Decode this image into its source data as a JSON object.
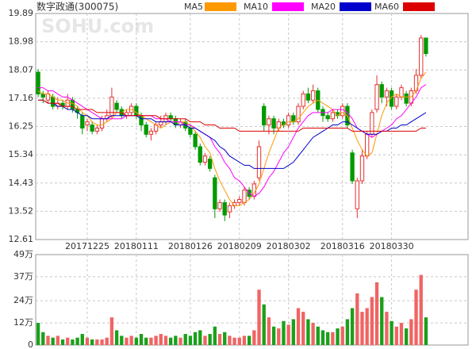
{
  "chart_data": [
    {
      "type": "candlestick",
      "title": "数字政通(300075)",
      "watermark": "SOHU.com",
      "categories": [
        null,
        null,
        null,
        null,
        null,
        null,
        null,
        null,
        null,
        null,
        "20171225",
        null,
        null,
        null,
        null,
        null,
        null,
        null,
        null,
        null,
        "20180111",
        null,
        null,
        null,
        null,
        null,
        null,
        null,
        null,
        null,
        null,
        "20180126",
        null,
        null,
        null,
        null,
        null,
        null,
        null,
        null,
        null,
        "20180209",
        null,
        null,
        null,
        null,
        null,
        null,
        null,
        null,
        null,
        "20180302",
        null,
        null,
        null,
        null,
        null,
        null,
        null,
        null,
        null,
        null,
        "20180316",
        null,
        null,
        null,
        null,
        null,
        null,
        null,
        null,
        null,
        "20180330",
        null,
        null,
        null,
        null,
        null,
        null,
        null
      ],
      "open": [
        18.0,
        17.3,
        17.1,
        17.2,
        16.9,
        17.0,
        16.9,
        17.1,
        16.8,
        16.6,
        16.3,
        16.3,
        16.1,
        16.2,
        16.5,
        16.6,
        17.0,
        16.8,
        16.6,
        16.7,
        16.9,
        16.6,
        16.3,
        16.0,
        16.1,
        16.3,
        16.4,
        16.6,
        16.5,
        16.3,
        16.4,
        16.2,
        16.0,
        15.6,
        15.1,
        15.2,
        14.6,
        13.6,
        13.8,
        13.5,
        13.7,
        13.8,
        13.8,
        14.2,
        14.0,
        14.6,
        16.9,
        16.3,
        16.5,
        16.2,
        16.4,
        16.3,
        16.6,
        16.4,
        16.9,
        17.3,
        17.1,
        17.4,
        16.8,
        16.6,
        16.5,
        16.7,
        16.6,
        16.9,
        15.4,
        13.6,
        14.5,
        15.3,
        16.0,
        16.8,
        17.6,
        17.2,
        17.4,
        16.9,
        17.2,
        17.3,
        17.0,
        17.4,
        17.9,
        19.1
      ],
      "high": [
        18.1,
        17.4,
        17.4,
        17.3,
        17.2,
        17.1,
        17.3,
        17.2,
        16.9,
        16.7,
        16.5,
        16.4,
        16.3,
        16.6,
        16.8,
        17.5,
        17.1,
        16.9,
        16.8,
        17.0,
        17.0,
        16.7,
        16.4,
        16.2,
        16.4,
        16.6,
        16.7,
        16.7,
        16.6,
        16.5,
        16.5,
        16.3,
        16.1,
        15.7,
        15.4,
        15.3,
        14.7,
        13.9,
        13.9,
        13.8,
        13.9,
        14.0,
        14.3,
        14.3,
        14.5,
        15.8,
        17.0,
        16.6,
        16.6,
        16.5,
        16.5,
        16.7,
        16.7,
        17.0,
        17.4,
        17.5,
        17.6,
        17.5,
        16.9,
        16.7,
        16.8,
        16.8,
        17.0,
        17.0,
        15.5,
        14.6,
        15.5,
        16.1,
        16.8,
        17.9,
        17.7,
        17.5,
        17.5,
        17.3,
        17.6,
        17.4,
        17.5,
        18.1,
        19.2,
        19.1
      ],
      "low": [
        17.2,
        17.0,
        17.0,
        16.8,
        16.8,
        16.8,
        16.8,
        16.7,
        16.5,
        16.0,
        16.1,
        16.0,
        16.0,
        16.1,
        16.4,
        16.5,
        16.7,
        16.5,
        16.5,
        16.6,
        16.5,
        16.1,
        15.9,
        15.8,
        16.0,
        16.2,
        16.3,
        16.4,
        16.2,
        16.2,
        16.1,
        15.9,
        15.5,
        15.0,
        15.0,
        14.8,
        13.3,
        13.5,
        13.2,
        13.3,
        13.6,
        13.7,
        13.7,
        13.9,
        13.9,
        14.5,
        16.1,
        16.0,
        16.0,
        16.1,
        16.2,
        16.2,
        16.3,
        16.3,
        16.8,
        17.0,
        17.0,
        16.7,
        16.4,
        16.4,
        16.4,
        16.5,
        16.5,
        16.2,
        14.4,
        13.3,
        14.4,
        15.2,
        15.9,
        16.7,
        17.0,
        16.9,
        16.8,
        16.8,
        17.1,
        16.9,
        16.9,
        17.3,
        17.8,
        18.5
      ],
      "close": [
        17.3,
        17.2,
        17.3,
        16.9,
        17.0,
        16.9,
        17.1,
        16.8,
        16.7,
        16.2,
        16.4,
        16.1,
        16.2,
        16.5,
        16.6,
        17.2,
        16.8,
        16.6,
        16.7,
        16.9,
        16.6,
        16.3,
        16.0,
        16.1,
        16.3,
        16.4,
        16.6,
        16.5,
        16.3,
        16.4,
        16.2,
        16.0,
        15.6,
        15.1,
        15.3,
        14.9,
        13.6,
        13.8,
        13.4,
        13.7,
        13.8,
        13.9,
        14.2,
        14.0,
        14.4,
        15.6,
        16.3,
        16.5,
        16.2,
        16.4,
        16.3,
        16.6,
        16.4,
        16.9,
        17.3,
        17.1,
        17.4,
        16.8,
        16.6,
        16.5,
        16.7,
        16.6,
        16.9,
        16.3,
        14.5,
        14.5,
        15.3,
        16.0,
        16.7,
        17.6,
        17.2,
        17.4,
        16.9,
        17.2,
        17.5,
        17.0,
        17.4,
        17.9,
        19.1,
        18.6
      ],
      "up_color": "#e83030",
      "down_color": "#009a00",
      "series": [
        {
          "name": "MA5",
          "color": "#ff9900",
          "values": [
            17.4,
            17.3,
            17.3,
            17.2,
            17.1,
            17.1,
            17.0,
            17.0,
            16.9,
            16.7,
            16.6,
            16.4,
            16.3,
            16.3,
            16.4,
            16.5,
            16.7,
            16.7,
            16.8,
            16.8,
            16.7,
            16.6,
            16.5,
            16.4,
            16.3,
            16.2,
            16.3,
            16.4,
            16.4,
            16.4,
            16.4,
            16.3,
            16.1,
            15.9,
            15.6,
            15.4,
            14.9,
            14.5,
            14.2,
            13.9,
            13.7,
            13.7,
            13.8,
            13.9,
            14.1,
            14.4,
            14.9,
            15.4,
            15.8,
            16.2,
            16.3,
            16.4,
            16.4,
            16.5,
            16.7,
            16.9,
            17.0,
            17.1,
            17.0,
            16.9,
            16.8,
            16.6,
            16.7,
            16.6,
            16.2,
            15.8,
            15.5,
            15.3,
            15.4,
            16.0,
            16.6,
            17.0,
            17.2,
            17.3,
            17.2,
            17.2,
            17.2,
            17.4,
            17.8,
            18.0
          ]
        },
        {
          "name": "MA10",
          "color": "#ff00ff",
          "values": [
            17.5,
            17.5,
            17.4,
            17.4,
            17.3,
            17.2,
            17.2,
            17.1,
            17.0,
            16.9,
            16.8,
            16.7,
            16.6,
            16.5,
            16.5,
            16.5,
            16.5,
            16.5,
            16.6,
            16.6,
            16.6,
            16.6,
            16.6,
            16.6,
            16.5,
            16.5,
            16.5,
            16.4,
            16.4,
            16.4,
            16.3,
            16.3,
            16.2,
            16.1,
            16.0,
            15.9,
            15.6,
            15.4,
            15.1,
            14.9,
            14.6,
            14.5,
            14.3,
            14.1,
            14.0,
            14.1,
            14.3,
            14.6,
            14.8,
            15.1,
            15.4,
            15.6,
            15.9,
            16.2,
            16.4,
            16.6,
            16.7,
            16.7,
            16.7,
            16.7,
            16.8,
            16.8,
            16.8,
            16.7,
            16.5,
            16.2,
            16.1,
            16.0,
            15.9,
            16.0,
            16.1,
            16.2,
            16.3,
            16.5,
            16.6,
            16.8,
            17.0,
            17.2,
            17.5,
            17.6
          ]
        },
        {
          "name": "MA20",
          "color": "#0000cc",
          "values": [
            17.1,
            17.1,
            17.0,
            17.0,
            16.9,
            16.9,
            16.8,
            16.8,
            16.7,
            16.6,
            16.6,
            16.5,
            16.5,
            16.5,
            16.5,
            16.6,
            16.6,
            16.6,
            16.6,
            16.6,
            16.6,
            16.5,
            16.5,
            16.5,
            16.4,
            16.4,
            16.4,
            16.4,
            16.3,
            16.3,
            16.3,
            16.2,
            16.2,
            16.1,
            16.0,
            15.9,
            15.8,
            15.6,
            15.5,
            15.3,
            15.2,
            15.1,
            15.0,
            15.0,
            14.9,
            14.9,
            14.9,
            14.9,
            14.9,
            14.9,
            14.9,
            15.0,
            15.1,
            15.3,
            15.5,
            15.7,
            15.9,
            16.0,
            16.1,
            16.2,
            16.3,
            16.3,
            16.4,
            16.4,
            16.3,
            16.2,
            16.1,
            16.0,
            16.0,
            16.0,
            16.1,
            16.1,
            16.2,
            16.2,
            16.3,
            16.3,
            16.4,
            16.5,
            16.6,
            16.7
          ]
        },
        {
          "name": "MA60",
          "color": "#dd0000",
          "values": [
            17.1,
            17.1,
            17.0,
            17.0,
            17.0,
            16.9,
            16.9,
            16.9,
            16.8,
            16.8,
            16.8,
            16.8,
            16.7,
            16.7,
            16.7,
            16.7,
            16.7,
            16.7,
            16.6,
            16.6,
            16.6,
            16.6,
            16.6,
            16.6,
            16.6,
            16.5,
            16.5,
            16.5,
            16.5,
            16.5,
            16.5,
            16.4,
            16.4,
            16.4,
            16.3,
            16.3,
            16.3,
            16.2,
            16.2,
            16.2,
            16.2,
            16.1,
            16.1,
            16.1,
            16.1,
            16.1,
            16.1,
            16.1,
            16.1,
            16.1,
            16.1,
            16.1,
            16.1,
            16.1,
            16.2,
            16.2,
            16.2,
            16.2,
            16.2,
            16.2,
            16.2,
            16.2,
            16.2,
            16.2,
            16.1,
            16.1,
            16.1,
            16.1,
            16.1,
            16.1,
            16.1,
            16.1,
            16.1,
            16.1,
            16.1,
            16.1,
            16.1,
            16.1,
            16.2,
            16.2
          ]
        }
      ],
      "ylim": [
        12.61,
        19.89
      ],
      "yticks": [
        12.61,
        13.52,
        14.43,
        15.34,
        16.25,
        17.16,
        18.07,
        18.98,
        19.89
      ],
      "grid": true
    },
    {
      "type": "bar",
      "values": [
        12,
        7,
        5,
        4,
        5,
        3,
        4,
        3,
        4,
        6,
        4,
        3,
        3,
        3,
        4,
        15,
        8,
        5,
        4,
        5,
        4,
        6,
        4,
        4,
        5,
        6,
        5,
        4,
        5,
        4,
        6,
        5,
        7,
        8,
        5,
        6,
        10,
        6,
        7,
        5,
        4,
        4,
        5,
        5,
        8,
        30,
        22,
        15,
        10,
        9,
        13,
        11,
        14,
        20,
        18,
        14,
        12,
        10,
        8,
        7,
        7,
        9,
        10,
        14,
        20,
        28,
        18,
        20,
        26,
        34,
        26,
        18,
        13,
        10,
        12,
        9,
        14,
        30,
        38,
        15
      ],
      "up_color": "#f06464",
      "down_color": "#1aa01a",
      "ylim": [
        0,
        49
      ],
      "yticks": [
        0,
        {
          "value": 12,
          "label": "12万"
        },
        {
          "value": 24,
          "label": "24万"
        },
        {
          "value": 37,
          "label": "37万"
        },
        {
          "value": 49,
          "label": "49万"
        }
      ],
      "grid": true
    }
  ]
}
